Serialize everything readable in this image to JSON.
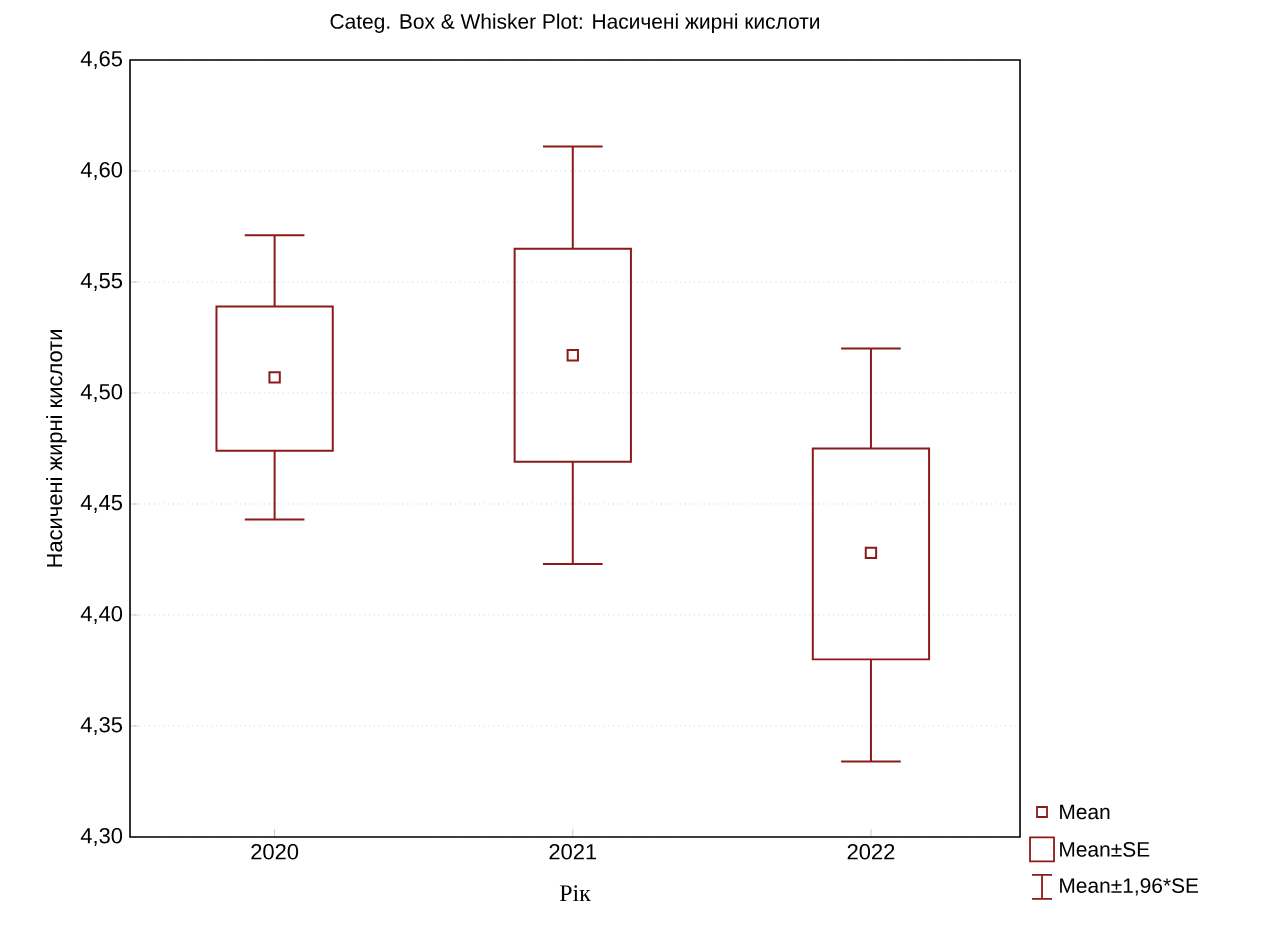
{
  "chart_data": {
    "type": "box",
    "title": "Categ. Box & Whisker Plot: Насичені жирні кислоти",
    "xlabel": "Рік",
    "ylabel": "Насичені жирні кислоти",
    "categories": [
      "2020",
      "2021",
      "2022"
    ],
    "boxes": [
      {
        "low": 4.443,
        "q1": 4.474,
        "q3": 4.539,
        "high": 4.571,
        "mean": 4.507
      },
      {
        "low": 4.423,
        "q1": 4.469,
        "q3": 4.565,
        "high": 4.611,
        "mean": 4.517
      },
      {
        "low": 4.334,
        "q1": 4.38,
        "q3": 4.475,
        "high": 4.52,
        "mean": 4.428
      }
    ],
    "color": "#8b1a1a",
    "ylim": [
      4.3,
      4.65
    ],
    "yticks": [
      {
        "value": 4.3,
        "label": "4,30"
      },
      {
        "value": 4.35,
        "label": "4,35"
      },
      {
        "value": 4.4,
        "label": "4,40"
      },
      {
        "value": 4.45,
        "label": "4,45"
      },
      {
        "value": 4.5,
        "label": "4,50"
      },
      {
        "value": 4.55,
        "label": "4,55"
      },
      {
        "value": 4.6,
        "label": "4,60"
      },
      {
        "value": 4.65,
        "label": "4,65"
      }
    ],
    "grid": "y",
    "marker": "square",
    "annotations": [
      "Mean",
      "Mean±SE",
      "Mean±1,96*SE"
    ]
  }
}
